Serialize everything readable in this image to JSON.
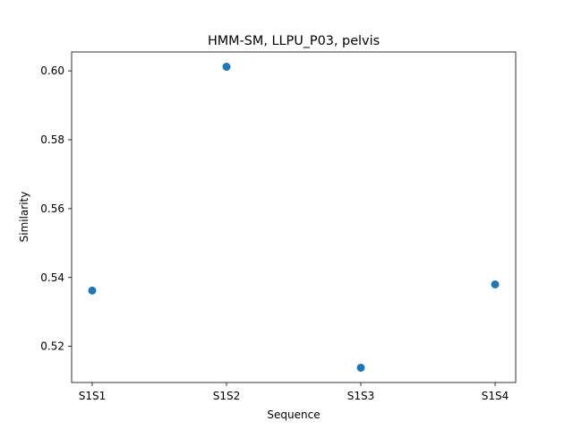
{
  "chart_data": {
    "type": "scatter",
    "title": "HMM-SM, LLPU_P03, pelvis",
    "xlabel": "Sequence",
    "ylabel": "Similarity",
    "categories": [
      "S1S1",
      "S1S2",
      "S1S3",
      "S1S4"
    ],
    "values": [
      0.5362,
      0.6012,
      0.5138,
      0.538
    ],
    "ylim": [
      0.5095,
      0.6055
    ],
    "yticks": [
      "0.52",
      "0.54",
      "0.56",
      "0.58",
      "0.60"
    ],
    "grid": false,
    "marker_color": "#1f77b4"
  }
}
